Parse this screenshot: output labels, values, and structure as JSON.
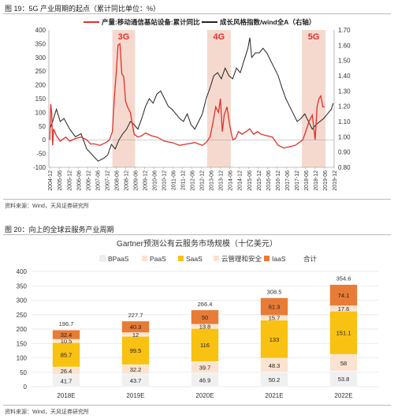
{
  "figure1": {
    "caption": "图 19：5G 产业周期的起点（累计同比单位：%）",
    "source": "资料来源：Wind，天风证券研究所",
    "chart_data": {
      "type": "line",
      "legend": [
        "产量:移动通信基站设备:累计同比",
        "成长风格指数/wind全A（右轴）"
      ],
      "annotations": [
        "3G",
        "4G",
        "5G"
      ],
      "highlight_periods": [
        {
          "label": "3G",
          "start": 2008.25,
          "end": 2009.45
        },
        {
          "label": "4G",
          "start": 2013.25,
          "end": 2014.5
        },
        {
          "label": "5G",
          "start": 2018.25,
          "end": 2019.5
        }
      ],
      "x_range": [
        2004.9,
        2019.95
      ],
      "ylim_left": [
        -100,
        400
      ],
      "ylim_right": [
        0.8,
        1.7
      ],
      "y_ticks_left": [
        "400",
        "350",
        "300",
        "250",
        "200",
        "150",
        "100",
        "50",
        "0",
        "-50",
        "-100"
      ],
      "y_ticks_right": [
        "1.70",
        "1.60",
        "1.50",
        "1.40",
        "1.30",
        "1.20",
        "1.10",
        "1.00",
        "0.90",
        "0.80"
      ],
      "x_ticks": [
        "2004-12",
        "2005-06",
        "2005-12",
        "2006-06",
        "2006-12",
        "2007-06",
        "2007-12",
        "2008-06",
        "2008-12",
        "2009-06",
        "2009-12",
        "2010-06",
        "2010-12",
        "2011-06",
        "2011-12",
        "2012-06",
        "2012-12",
        "2013-06",
        "2013-12",
        "2014-06",
        "2014-12",
        "2015-06",
        "2015-12",
        "2016-06",
        "2016-12",
        "2017-06",
        "2017-12",
        "2018-06",
        "2018-12",
        "2019-06",
        "2019-12"
      ],
      "colors": {
        "production": "#e0312b",
        "growth": "#222222",
        "highlight": "#f5d9cf"
      },
      "series": [
        {
          "name": "产量:移动通信基站设备:累计同比",
          "axis": "left",
          "points": [
            [
              2004.95,
              0
            ],
            [
              2005.0,
              130
            ],
            [
              2005.05,
              100
            ],
            [
              2005.1,
              -20
            ],
            [
              2005.15,
              40
            ],
            [
              2005.3,
              15
            ],
            [
              2005.5,
              -5
            ],
            [
              2005.8,
              10
            ],
            [
              2006.0,
              -5
            ],
            [
              2006.3,
              5
            ],
            [
              2006.6,
              10
            ],
            [
              2006.9,
              0
            ],
            [
              2007.1,
              -15
            ],
            [
              2007.3,
              -15
            ],
            [
              2007.6,
              -20
            ],
            [
              2007.9,
              -10
            ],
            [
              2008.1,
              0
            ],
            [
              2008.25,
              30
            ],
            [
              2008.35,
              150
            ],
            [
              2008.45,
              240
            ],
            [
              2008.55,
              345
            ],
            [
              2008.65,
              350
            ],
            [
              2008.75,
              240
            ],
            [
              2008.85,
              230
            ],
            [
              2008.95,
              140
            ],
            [
              2009.05,
              120
            ],
            [
              2009.2,
              100
            ],
            [
              2009.4,
              20
            ],
            [
              2009.6,
              10
            ],
            [
              2009.8,
              15
            ],
            [
              2010.0,
              25
            ],
            [
              2010.3,
              15
            ],
            [
              2010.6,
              10
            ],
            [
              2011.0,
              -5
            ],
            [
              2011.4,
              -10
            ],
            [
              2011.8,
              -20
            ],
            [
              2012.2,
              -15
            ],
            [
              2012.6,
              -10
            ],
            [
              2013.0,
              -20
            ],
            [
              2013.2,
              -10
            ],
            [
              2013.4,
              10
            ],
            [
              2013.55,
              60
            ],
            [
              2013.7,
              120
            ],
            [
              2013.85,
              100
            ],
            [
              2013.95,
              150
            ],
            [
              2014.05,
              30
            ],
            [
              2014.15,
              90
            ],
            [
              2014.3,
              120
            ],
            [
              2014.45,
              50
            ],
            [
              2014.6,
              0
            ],
            [
              2014.75,
              5
            ],
            [
              2014.9,
              30
            ],
            [
              2015.1,
              20
            ],
            [
              2015.3,
              30
            ],
            [
              2015.5,
              40
            ],
            [
              2015.7,
              20
            ],
            [
              2015.9,
              30
            ],
            [
              2016.1,
              20
            ],
            [
              2016.4,
              15
            ],
            [
              2016.7,
              10
            ],
            [
              2017.0,
              -20
            ],
            [
              2017.3,
              -30
            ],
            [
              2017.6,
              -25
            ],
            [
              2017.9,
              -20
            ],
            [
              2018.1,
              -10
            ],
            [
              2018.3,
              0
            ],
            [
              2018.5,
              40
            ],
            [
              2018.65,
              70
            ],
            [
              2018.8,
              90
            ],
            [
              2018.95,
              0
            ],
            [
              2019.05,
              120
            ],
            [
              2019.15,
              150
            ],
            [
              2019.25,
              160
            ],
            [
              2019.35,
              120
            ],
            [
              2019.45,
              120
            ]
          ]
        },
        {
          "name": "成长风格指数/wind全A（右轴）",
          "axis": "right",
          "points": [
            [
              2004.95,
              1.05
            ],
            [
              2005.1,
              1.1
            ],
            [
              2005.3,
              1.18
            ],
            [
              2005.5,
              1.1
            ],
            [
              2005.7,
              1.12
            ],
            [
              2006.0,
              1.05
            ],
            [
              2006.3,
              1.0
            ],
            [
              2006.6,
              1.02
            ],
            [
              2006.9,
              0.92
            ],
            [
              2007.2,
              0.88
            ],
            [
              2007.5,
              0.84
            ],
            [
              2007.8,
              0.86
            ],
            [
              2008.0,
              0.88
            ],
            [
              2008.2,
              0.95
            ],
            [
              2008.4,
              0.92
            ],
            [
              2008.6,
              0.98
            ],
            [
              2008.8,
              1.02
            ],
            [
              2009.0,
              1.05
            ],
            [
              2009.2,
              1.1
            ],
            [
              2009.4,
              1.08
            ],
            [
              2009.6,
              1.05
            ],
            [
              2009.8,
              1.12
            ],
            [
              2010.0,
              1.2
            ],
            [
              2010.2,
              1.25
            ],
            [
              2010.4,
              1.22
            ],
            [
              2010.6,
              1.28
            ],
            [
              2010.8,
              1.3
            ],
            [
              2011.0,
              1.25
            ],
            [
              2011.2,
              1.2
            ],
            [
              2011.4,
              1.18
            ],
            [
              2011.6,
              1.15
            ],
            [
              2011.8,
              1.12
            ],
            [
              2012.0,
              1.1
            ],
            [
              2012.2,
              1.15
            ],
            [
              2012.4,
              1.08
            ],
            [
              2012.6,
              1.05
            ],
            [
              2012.8,
              1.1
            ],
            [
              2013.0,
              1.15
            ],
            [
              2013.2,
              1.25
            ],
            [
              2013.4,
              1.32
            ],
            [
              2013.6,
              1.4
            ],
            [
              2013.8,
              1.42
            ],
            [
              2014.0,
              1.38
            ],
            [
              2014.2,
              1.45
            ],
            [
              2014.4,
              1.4
            ],
            [
              2014.6,
              1.38
            ],
            [
              2014.8,
              1.45
            ],
            [
              2015.0,
              1.42
            ],
            [
              2015.2,
              1.5
            ],
            [
              2015.4,
              1.58
            ],
            [
              2015.5,
              1.65
            ],
            [
              2015.6,
              1.52
            ],
            [
              2015.8,
              1.55
            ],
            [
              2016.0,
              1.55
            ],
            [
              2016.2,
              1.58
            ],
            [
              2016.4,
              1.55
            ],
            [
              2016.6,
              1.5
            ],
            [
              2016.8,
              1.45
            ],
            [
              2017.0,
              1.4
            ],
            [
              2017.2,
              1.32
            ],
            [
              2017.4,
              1.25
            ],
            [
              2017.6,
              1.2
            ],
            [
              2017.8,
              1.15
            ],
            [
              2018.0,
              1.1
            ],
            [
              2018.2,
              1.12
            ],
            [
              2018.4,
              1.15
            ],
            [
              2018.6,
              1.1
            ],
            [
              2018.8,
              1.05
            ],
            [
              2019.0,
              1.08
            ],
            [
              2019.2,
              1.1
            ],
            [
              2019.4,
              1.12
            ],
            [
              2019.6,
              1.15
            ],
            [
              2019.8,
              1.18
            ],
            [
              2019.9,
              1.22
            ]
          ]
        }
      ]
    }
  },
  "figure2": {
    "caption": "图 20：向上的全球云服务产业周期",
    "source": "资料来源：Wind，天风证券研究所",
    "chart_data": {
      "type": "bar",
      "stacked": true,
      "title": "Gartner预测公有云服务市场规模（十亿美元）",
      "categories": [
        "2018E",
        "2019E",
        "2020E",
        "2021E",
        "2022E"
      ],
      "series": [
        {
          "name": "BPaaS",
          "values": [
            41.7,
            43.7,
            46.9,
            50.2,
            53.8
          ],
          "color": "#f0f0f0",
          "text_color": "#222222"
        },
        {
          "name": "PaaS",
          "values": [
            26.4,
            32.2,
            39.7,
            48.3,
            58
          ],
          "color": "#fbe3d2",
          "text_color": "#222222"
        },
        {
          "name": "SaaS",
          "values": [
            85.7,
            99.5,
            116,
            133,
            151.1
          ],
          "color": "#f9c112",
          "text_color": "#222222"
        },
        {
          "name": "云管理和安全",
          "values": [
            10.5,
            12,
            13.8,
            15.7,
            17.6
          ],
          "color": "#fbe3d2",
          "text_color": "#222222"
        },
        {
          "name": "IaaS",
          "values": [
            32.4,
            40.3,
            50,
            61.3,
            74.1
          ],
          "color": "#e87b36",
          "text_color": "#222222"
        }
      ],
      "totals": {
        "name": "合计",
        "values": [
          196.7,
          227.7,
          266.4,
          308.5,
          354.6
        ]
      },
      "ylim": [
        0,
        400
      ],
      "y_ticks": [
        "0",
        "50",
        "100",
        "150",
        "200",
        "250",
        "300",
        "350",
        "400"
      ],
      "grid": true,
      "legend_position": "top"
    }
  }
}
